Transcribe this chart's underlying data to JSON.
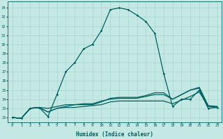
{
  "xlabel": "Humidex (Indice chaleur)",
  "ylabel": "",
  "bg_color": "#c4e8e4",
  "grid_color": "#a8d4d0",
  "line_color": "#006060",
  "xlim": [
    -0.5,
    23.5
  ],
  "ylim": [
    21.5,
    34.7
  ],
  "xticks": [
    0,
    1,
    2,
    3,
    4,
    5,
    6,
    7,
    8,
    9,
    10,
    11,
    12,
    13,
    14,
    15,
    16,
    17,
    18,
    19,
    20,
    21,
    22,
    23
  ],
  "yticks": [
    22,
    23,
    24,
    25,
    26,
    27,
    28,
    29,
    30,
    31,
    32,
    33,
    34
  ],
  "series": [
    [
      22,
      21.9,
      23,
      23.1,
      22.1,
      24.5,
      27,
      28,
      29.5,
      30,
      31.5,
      33.8,
      34,
      33.8,
      33.2,
      32.5,
      31.2,
      26.8,
      23.2,
      24,
      24,
      25,
      23,
      23.1
    ],
    [
      22,
      21.9,
      23,
      23.1,
      23,
      23.2,
      23.4,
      23.4,
      23.5,
      23.5,
      23.8,
      24.0,
      24.1,
      24.1,
      24.1,
      24.3,
      24.5,
      24.5,
      24.0,
      24.5,
      25.0,
      25.2,
      23.2,
      23.2
    ],
    [
      22,
      21.9,
      23,
      23.1,
      22.6,
      23.0,
      23.1,
      23.1,
      23.2,
      23.3,
      23.4,
      23.7,
      23.8,
      23.8,
      23.8,
      23.8,
      23.8,
      23.8,
      23.5,
      23.9,
      24.3,
      24.8,
      23.2,
      23.1
    ],
    [
      22,
      21.9,
      23,
      23.1,
      22.6,
      23.0,
      23.2,
      23.4,
      23.4,
      23.4,
      23.7,
      24.1,
      24.2,
      24.2,
      24.2,
      24.4,
      24.7,
      24.7,
      24.0,
      24.5,
      25.0,
      25.3,
      23.3,
      23.2
    ]
  ],
  "marker_series": 0
}
